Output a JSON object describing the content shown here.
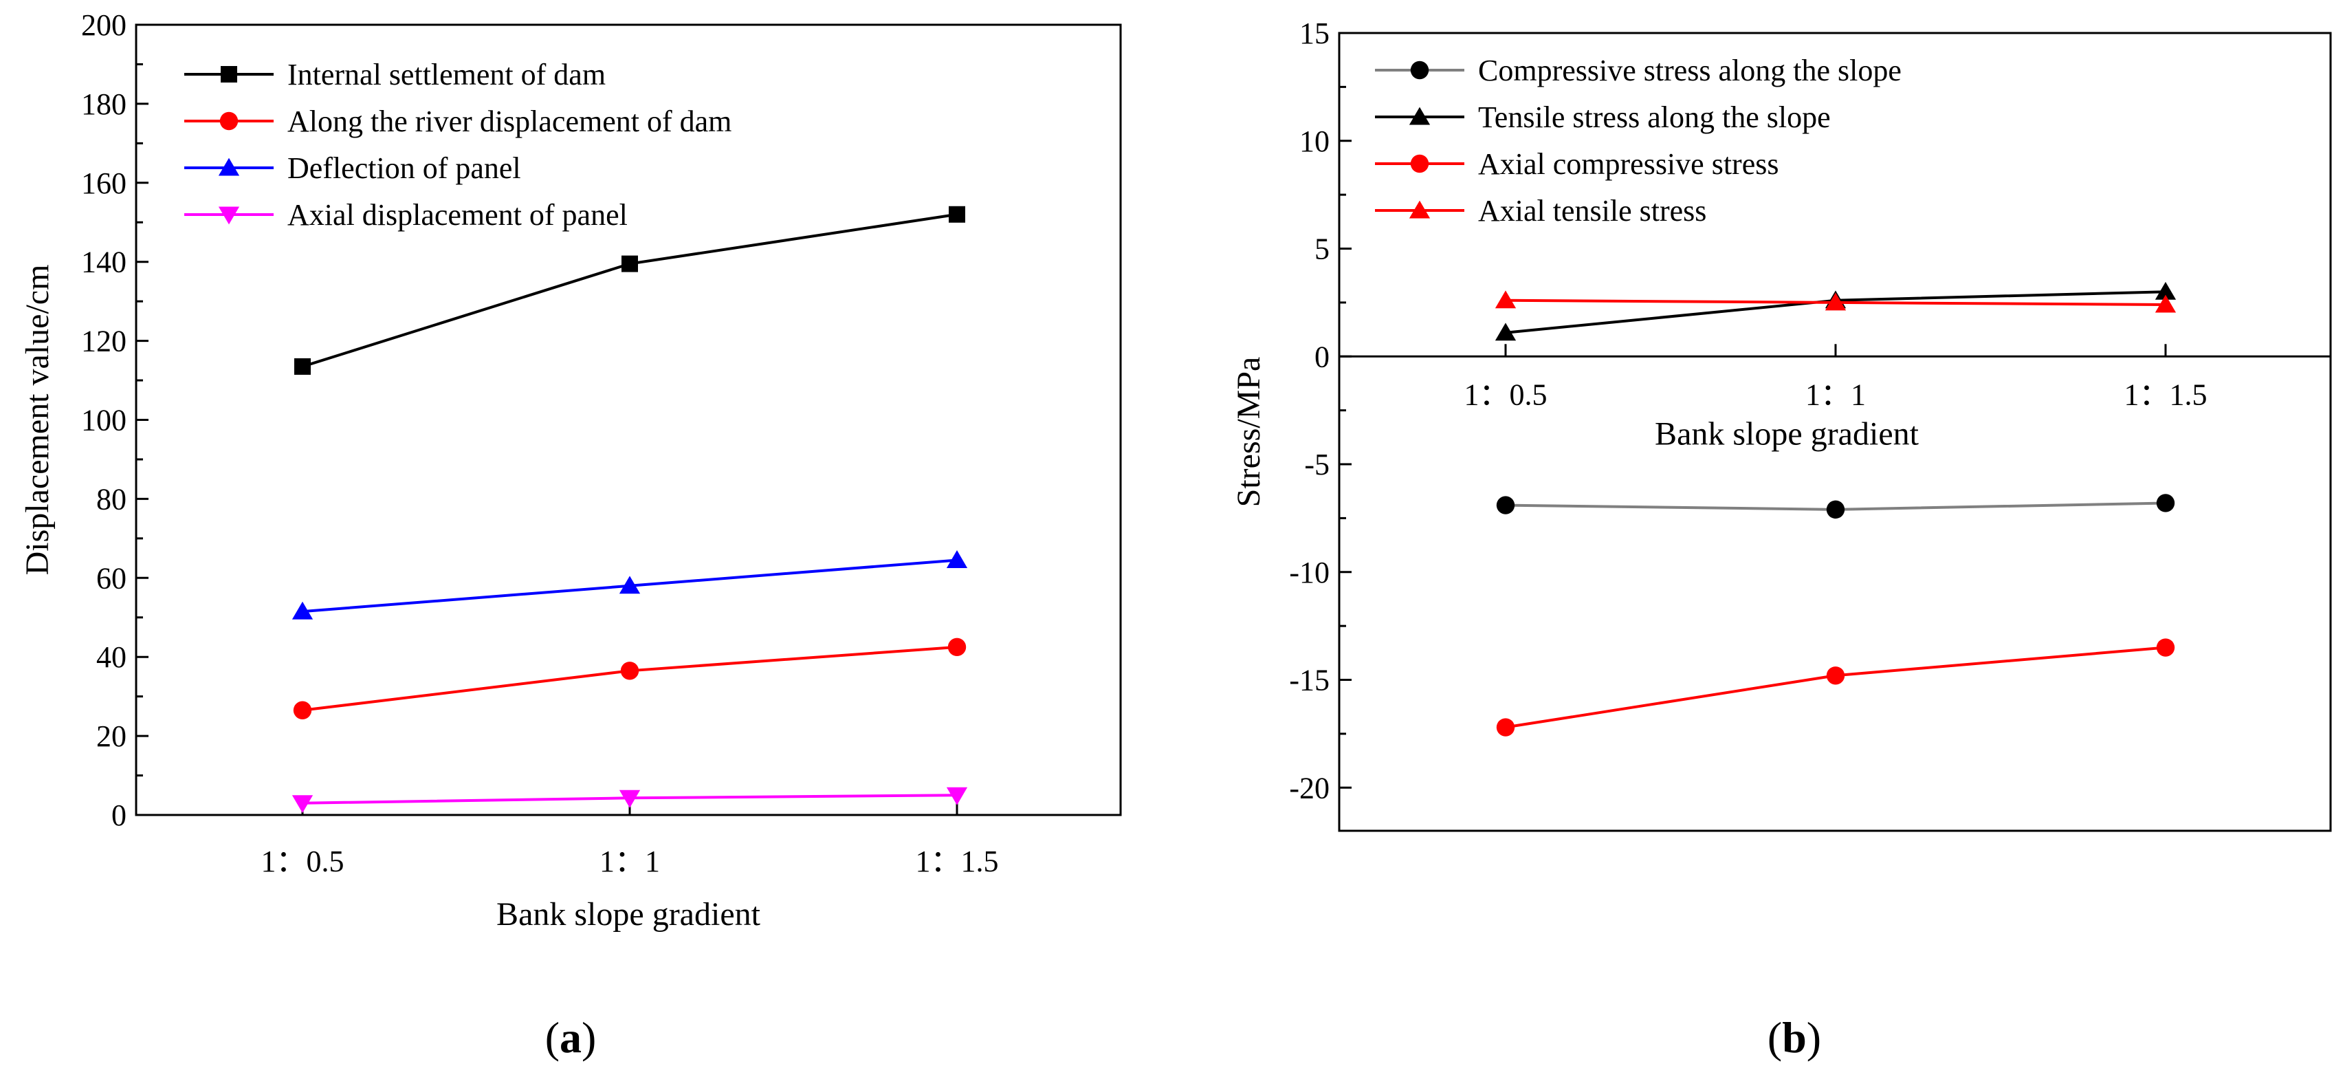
{
  "chart_data": [
    {
      "type": "line",
      "panel_label": "(a)",
      "categories": [
        "1：0.5",
        "1：1",
        "1：1.5"
      ],
      "xlabel": "Bank slope gradient",
      "ylabel": "Displacement value/cm",
      "ylim": [
        0,
        200
      ],
      "yticks": [
        0,
        20,
        40,
        60,
        80,
        100,
        120,
        140,
        160,
        180,
        200
      ],
      "legend_position": "top-left",
      "series": [
        {
          "name": "Internal settlement of dam",
          "color": "#000000",
          "marker": "square",
          "values": [
            113.5,
            139.5,
            152.0
          ]
        },
        {
          "name": "Along the river displacement of dam",
          "color": "#ff0000",
          "marker": "circle",
          "values": [
            26.5,
            36.5,
            42.5
          ]
        },
        {
          "name": "Deflection of panel",
          "color": "#0000ff",
          "marker": "triangle-up",
          "values": [
            51.5,
            58.0,
            64.5
          ]
        },
        {
          "name": "Axial displacement of panel",
          "color": "#ff00ff",
          "marker": "triangle-down",
          "values": [
            3.0,
            4.3,
            5.0
          ]
        }
      ]
    },
    {
      "type": "line",
      "panel_label": "(b)",
      "categories": [
        "1：0.5",
        "1：1",
        "1：1.5"
      ],
      "xlabel": "Bank slope gradient",
      "ylabel": "Stress/MPa",
      "ylim": [
        -22,
        15
      ],
      "yticks": [
        -20,
        -15,
        -10,
        -5,
        0,
        5,
        10,
        15
      ],
      "legend_position": "top-left",
      "series": [
        {
          "name": "Compressive stress along the slope",
          "color": "#808080",
          "marker_color": "#000000",
          "marker": "circle",
          "values": [
            -6.9,
            -7.1,
            -6.8
          ]
        },
        {
          "name": "Tensile stress along the slope",
          "color": "#000000",
          "marker": "triangle-up",
          "values": [
            1.1,
            2.6,
            3.0
          ]
        },
        {
          "name": "Axial compressive stress",
          "color": "#ff0000",
          "marker": "circle",
          "values": [
            -17.2,
            -14.8,
            -13.5
          ]
        },
        {
          "name": "Axial tensile stress",
          "color": "#ff0000",
          "marker": "triangle-up",
          "values": [
            2.6,
            2.5,
            2.4
          ]
        }
      ]
    }
  ]
}
